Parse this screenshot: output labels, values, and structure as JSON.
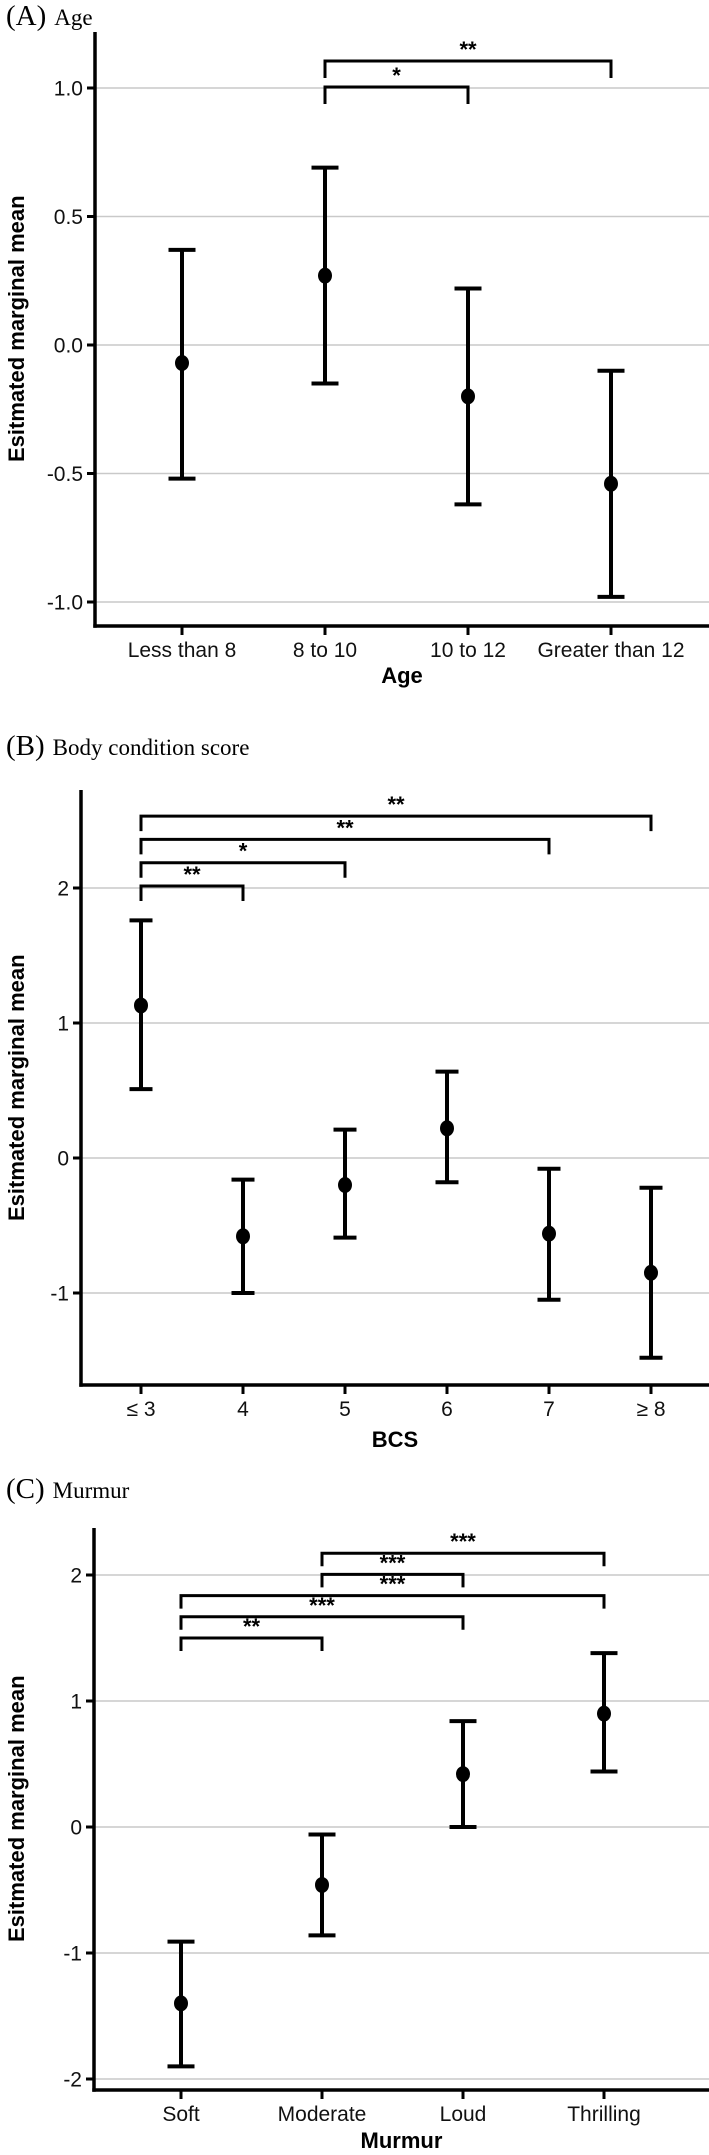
{
  "figure": {
    "background_color": "#ffffff",
    "ink_color": "#000000",
    "gridline_color": "#c9c9c9"
  },
  "chart_data": [
    {
      "type": "point-range",
      "panel_label": "(A)",
      "title": "Age",
      "xlabel": "Age",
      "ylabel": "Esitmated marginal mean",
      "categories": [
        "Less than 8",
        "8 to 10",
        "10 to 12",
        "Greater than 12"
      ],
      "means": [
        -0.07,
        0.27,
        -0.2,
        -0.54
      ],
      "ci_low": [
        -0.52,
        -0.15,
        -0.62,
        -0.98
      ],
      "ci_high": [
        0.37,
        0.69,
        0.22,
        -0.1
      ],
      "ytick_labels": [
        "1.0",
        "0.5",
        "0.0",
        "-0.5",
        "-1.0"
      ],
      "ytick_values": [
        1.0,
        0.5,
        0.0,
        -0.5,
        -1.0
      ],
      "ylim": [
        -1.09,
        1.22
      ],
      "grid": true,
      "legend": "none",
      "significance_brackets": [
        {
          "from": "8 to 10",
          "to": "10 to 12",
          "label": "*"
        },
        {
          "from": "8 to 10",
          "to": "Greater than 12",
          "label": "**"
        }
      ]
    },
    {
      "type": "point-range",
      "panel_label": "(B)",
      "title": "Body condition score",
      "xlabel": "BCS",
      "ylabel": "Esitmated marginal mean",
      "categories": [
        "≤ 3",
        "4",
        "5",
        "6",
        "7",
        "≥ 8"
      ],
      "means": [
        1.13,
        -0.58,
        -0.2,
        0.22,
        -0.56,
        -0.85
      ],
      "ci_low": [
        0.51,
        -1.0,
        -0.59,
        -0.18,
        -1.05,
        -1.48
      ],
      "ci_high": [
        1.76,
        -0.16,
        0.21,
        0.64,
        -0.08,
        -0.22
      ],
      "ytick_labels": [
        "2",
        "1",
        "0",
        "-1"
      ],
      "ytick_values": [
        2,
        1,
        0,
        -1
      ],
      "ylim": [
        -1.68,
        2.73
      ],
      "grid": true,
      "legend": "none",
      "significance_brackets": [
        {
          "from": "≤ 3",
          "to": "4",
          "label": "**"
        },
        {
          "from": "≤ 3",
          "to": "5",
          "label": "*"
        },
        {
          "from": "≤ 3",
          "to": "7",
          "label": "**"
        },
        {
          "from": "≤ 3",
          "to": "≥ 8",
          "label": "**"
        }
      ]
    },
    {
      "type": "point-range",
      "panel_label": "(C)",
      "title": "Murmur",
      "xlabel": "Murmur",
      "ylabel": "Esitmated marginal mean",
      "categories": [
        "Soft",
        "Moderate",
        "Loud",
        "Thrilling"
      ],
      "means": [
        -1.4,
        -0.46,
        0.42,
        0.9
      ],
      "ci_low": [
        -1.9,
        -0.86,
        0.0,
        0.44
      ],
      "ci_high": [
        -0.91,
        -0.06,
        0.84,
        1.38
      ],
      "ytick_labels": [
        "2",
        "1",
        "0",
        "-1",
        "-2"
      ],
      "ytick_values": [
        2,
        1,
        0,
        -1,
        -2
      ],
      "ylim": [
        -2.09,
        2.37
      ],
      "grid": true,
      "legend": "none",
      "significance_brackets": [
        {
          "from": "Soft",
          "to": "Moderate",
          "label": "**"
        },
        {
          "from": "Soft",
          "to": "Loud",
          "label": "***"
        },
        {
          "from": "Soft",
          "to": "Thrilling",
          "label": "***"
        },
        {
          "from": "Moderate",
          "to": "Loud",
          "label": "***"
        },
        {
          "from": "Moderate",
          "to": "Thrilling",
          "label": "***"
        }
      ]
    }
  ]
}
